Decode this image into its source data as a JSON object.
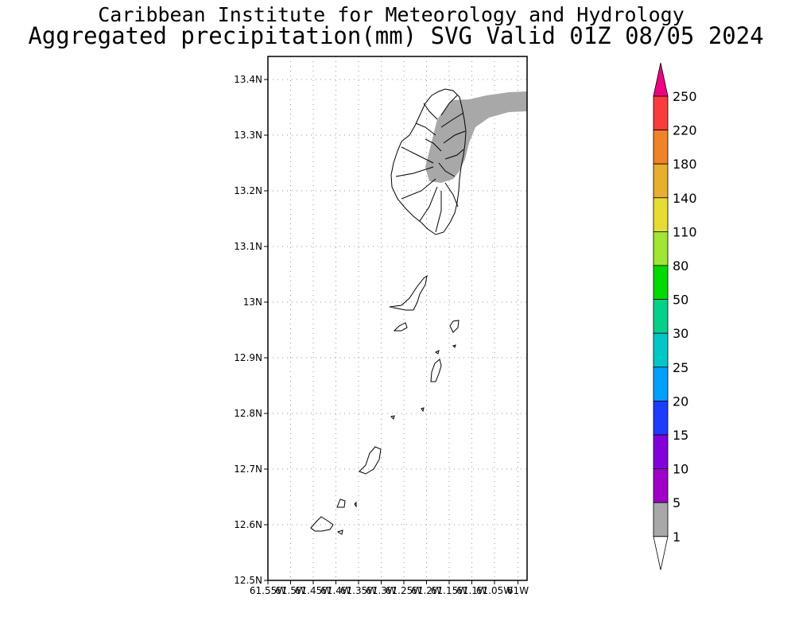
{
  "header": {
    "title_line1": "Caribbean Institute for Meteorology and Hydrology",
    "title_line2": "Aggregated precipitation(mm) SVG Valid 01Z 08/05 2024"
  },
  "map": {
    "lat_ticks": [
      "13.4N",
      "13.3N",
      "13.2N",
      "13.1N",
      "13N",
      "12.9N",
      "12.8N",
      "12.7N",
      "12.6N",
      "12.5N"
    ],
    "lon_ticks": [
      "61.55W",
      "61.5W",
      "61.45W",
      "61.4W",
      "61.35W",
      "61.3W",
      "61.25W",
      "61.2W",
      "61.15W",
      "61.1W",
      "61.05W",
      "61W"
    ],
    "lat_range": [
      12.5,
      13.44
    ],
    "lon_range": [
      -61.55,
      -61.0
    ],
    "grid": "dotted",
    "precip_color": "#a8a8a8",
    "coast_color": "#000000"
  },
  "colorbar": {
    "labels": [
      "1",
      "5",
      "10",
      "15",
      "20",
      "25",
      "30",
      "50",
      "80",
      "110",
      "140",
      "180",
      "220",
      "250"
    ],
    "colors": [
      "#a8a8a8",
      "#a000c8",
      "#8200dc",
      "#1e3cff",
      "#00a0ff",
      "#00c8c8",
      "#00d28c",
      "#00dc00",
      "#a0e632",
      "#e6dc32",
      "#e6af2d",
      "#f08228",
      "#fa3c3c",
      "#f00082"
    ],
    "under_color": "#ffffff",
    "over_color": "#f00082"
  }
}
